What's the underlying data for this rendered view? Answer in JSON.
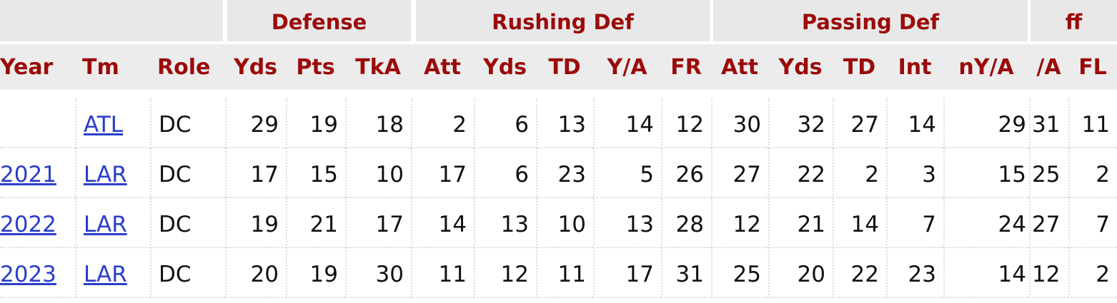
{
  "table": {
    "groups": [
      "Defense",
      "Rushing Def",
      "Passing Def",
      "ff"
    ],
    "columns": [
      "Year",
      "Tm",
      "Role",
      "Yds",
      "Pts",
      "TkA",
      "Att",
      "Yds",
      "TD",
      "Y/A",
      "FR",
      "Att",
      "Yds",
      "TD",
      "Int",
      "nY/A",
      "/A",
      "FL"
    ],
    "rows": [
      [
        null,
        "ATL",
        "DC",
        29,
        19,
        18,
        2,
        6,
        13,
        14,
        12,
        30,
        32,
        27,
        14,
        29,
        31,
        11
      ],
      [
        "2021",
        "LAR",
        "DC",
        17,
        15,
        10,
        17,
        6,
        23,
        5,
        26,
        27,
        22,
        2,
        3,
        15,
        25,
        2
      ],
      [
        "2022",
        "LAR",
        "DC",
        19,
        21,
        17,
        14,
        13,
        10,
        13,
        28,
        12,
        21,
        14,
        7,
        24,
        27,
        7
      ],
      [
        "2023",
        "LAR",
        "DC",
        20,
        19,
        30,
        11,
        12,
        11,
        17,
        31,
        25,
        20,
        22,
        23,
        14,
        12,
        2
      ]
    ]
  }
}
